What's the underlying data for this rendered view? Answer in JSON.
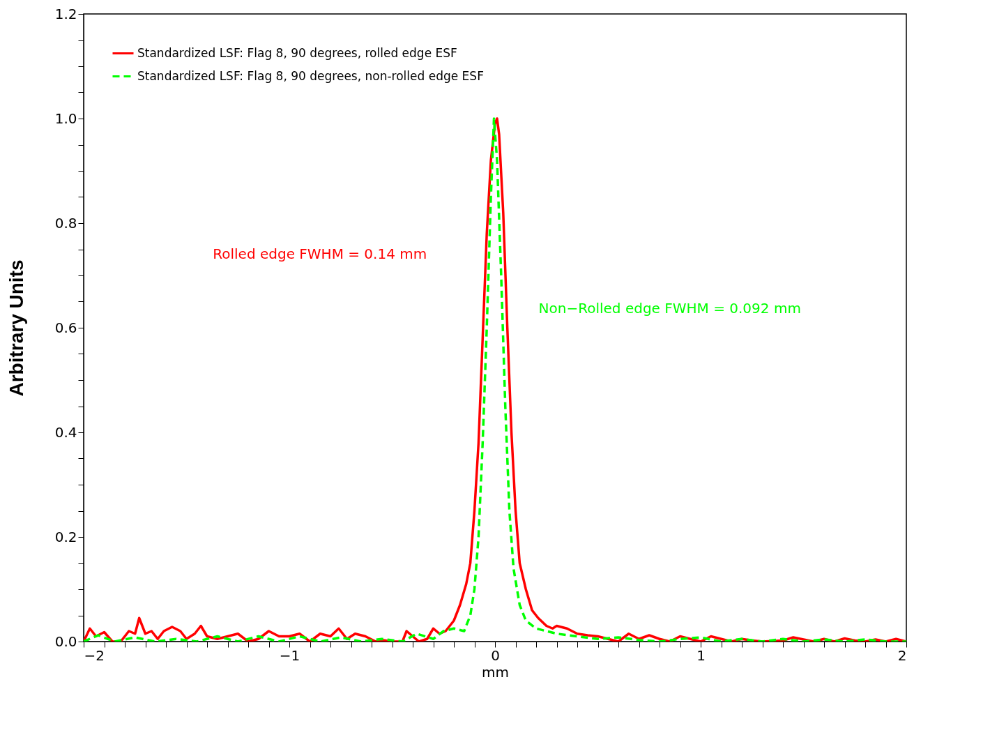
{
  "chart_data": {
    "type": "line",
    "xlabel": "mm",
    "ylabel": "Arbitrary Units",
    "xlim": [
      -2,
      2
    ],
    "ylim": [
      0,
      1.2
    ],
    "xticks": [
      {
        "value": -2,
        "label": "−2"
      },
      {
        "value": -1.9,
        "label": null
      },
      {
        "value": -1.8,
        "label": null
      },
      {
        "value": -1.7,
        "label": null
      },
      {
        "value": -1.6,
        "label": null
      },
      {
        "value": -1.5,
        "label": null
      },
      {
        "value": -1.4,
        "label": null
      },
      {
        "value": -1.3,
        "label": null
      },
      {
        "value": -1.2,
        "label": null
      },
      {
        "value": -1.1,
        "label": null
      },
      {
        "value": -1,
        "label": "−1"
      },
      {
        "value": -0.9,
        "label": null
      },
      {
        "value": -0.8,
        "label": null
      },
      {
        "value": -0.7,
        "label": null
      },
      {
        "value": -0.6,
        "label": null
      },
      {
        "value": -0.5,
        "label": null
      },
      {
        "value": -0.4,
        "label": null
      },
      {
        "value": -0.3,
        "label": null
      },
      {
        "value": -0.2,
        "label": null
      },
      {
        "value": -0.1,
        "label": null
      },
      0,
      {
        "value": 0.1,
        "label": null
      },
      {
        "value": 0.2,
        "label": null
      },
      {
        "value": 0.3,
        "label": null
      },
      {
        "value": 0.4,
        "label": null
      },
      {
        "value": 0.5,
        "label": null
      },
      {
        "value": 0.6,
        "label": null
      },
      {
        "value": 0.7,
        "label": null
      },
      {
        "value": 0.8,
        "label": null
      },
      {
        "value": 0.9,
        "label": null
      },
      1,
      {
        "value": 1.1,
        "label": null
      },
      {
        "value": 1.2,
        "label": null
      },
      {
        "value": 1.3,
        "label": null
      },
      {
        "value": 1.4,
        "label": null
      },
      {
        "value": 1.5,
        "label": null
      },
      {
        "value": 1.6,
        "label": null
      },
      {
        "value": 1.7,
        "label": null
      },
      {
        "value": 1.8,
        "label": null
      },
      {
        "value": 1.9,
        "label": null
      },
      2
    ],
    "yticks": [
      {
        "value": 0,
        "label": "0.0"
      },
      {
        "value": 0.05,
        "label": null
      },
      {
        "value": 0.1,
        "label": null
      },
      {
        "value": 0.15,
        "label": null
      },
      0.2,
      {
        "value": 0.25,
        "label": null
      },
      {
        "value": 0.3,
        "label": null
      },
      {
        "value": 0.35,
        "label": null
      },
      0.4,
      {
        "value": 0.45,
        "label": null
      },
      {
        "value": 0.5,
        "label": null
      },
      {
        "value": 0.55,
        "label": null
      },
      0.6,
      {
        "value": 0.65,
        "label": null
      },
      {
        "value": 0.7,
        "label": null
      },
      {
        "value": 0.75,
        "label": null
      },
      0.8,
      {
        "value": 0.85,
        "label": null
      },
      {
        "value": 0.9,
        "label": null
      },
      {
        "value": 0.95,
        "label": null
      },
      {
        "value": 1,
        "label": "1.0"
      },
      {
        "value": 1.05,
        "label": null
      },
      {
        "value": 1.1,
        "label": null
      },
      {
        "value": 1.15,
        "label": null
      },
      1.2
    ],
    "grid": false,
    "legend": "top left",
    "marker": "none",
    "annotations": [
      "Rolled edge FWHM = 0.14 mm",
      "Non−Rolled edge FWHM = 0.092 mm"
    ],
    "series": [
      {
        "name": "Standardized LSF: Flag 8, 90 degrees, rolled edge ESF",
        "color": "#ff0000",
        "line_style": "solid",
        "x": [
          -2.0,
          -1.97,
          -1.94,
          -1.9,
          -1.86,
          -1.82,
          -1.78,
          -1.75,
          -1.73,
          -1.7,
          -1.67,
          -1.64,
          -1.61,
          -1.57,
          -1.53,
          -1.5,
          -1.46,
          -1.43,
          -1.4,
          -1.35,
          -1.3,
          -1.25,
          -1.2,
          -1.15,
          -1.1,
          -1.05,
          -1.0,
          -0.95,
          -0.9,
          -0.85,
          -0.8,
          -0.76,
          -0.72,
          -0.68,
          -0.63,
          -0.58,
          -0.55,
          -0.5,
          -0.45,
          -0.43,
          -0.4,
          -0.37,
          -0.33,
          -0.3,
          -0.27,
          -0.24,
          -0.2,
          -0.17,
          -0.14,
          -0.12,
          -0.1,
          -0.08,
          -0.06,
          -0.04,
          -0.02,
          0.0,
          0.01,
          0.02,
          0.04,
          0.06,
          0.08,
          0.1,
          0.12,
          0.15,
          0.18,
          0.21,
          0.25,
          0.28,
          0.3,
          0.35,
          0.4,
          0.45,
          0.5,
          0.55,
          0.6,
          0.65,
          0.7,
          0.75,
          0.8,
          0.85,
          0.9,
          0.95,
          1.0,
          1.05,
          1.1,
          1.15,
          1.2,
          1.25,
          1.3,
          1.4,
          1.45,
          1.55,
          1.6,
          1.65,
          1.7,
          1.75,
          1.8,
          1.85,
          1.9,
          1.95,
          2.0
        ],
        "values": [
          0.0,
          0.025,
          0.01,
          0.018,
          0.0,
          0.0,
          0.02,
          0.015,
          0.045,
          0.015,
          0.02,
          0.005,
          0.02,
          0.028,
          0.02,
          0.005,
          0.015,
          0.03,
          0.01,
          0.005,
          0.01,
          0.015,
          0.0,
          0.005,
          0.02,
          0.01,
          0.01,
          0.015,
          0.0,
          0.015,
          0.01,
          0.025,
          0.005,
          0.015,
          0.01,
          0.0,
          0.003,
          0.0,
          0.0,
          0.02,
          0.01,
          0.0,
          0.005,
          0.025,
          0.015,
          0.02,
          0.04,
          0.07,
          0.11,
          0.15,
          0.25,
          0.38,
          0.58,
          0.78,
          0.92,
          0.99,
          1.0,
          0.97,
          0.82,
          0.6,
          0.4,
          0.25,
          0.15,
          0.1,
          0.06,
          0.045,
          0.03,
          0.025,
          0.03,
          0.025,
          0.015,
          0.012,
          0.01,
          0.005,
          0.0,
          0.015,
          0.005,
          0.012,
          0.005,
          0.0,
          0.01,
          0.005,
          0.0,
          0.01,
          0.005,
          0.0,
          0.005,
          0.002,
          0.0,
          0.002,
          0.008,
          0.0,
          0.005,
          0.0,
          0.006,
          0.002,
          0.0,
          0.004,
          0.0,
          0.005,
          0.0
        ]
      },
      {
        "name": "Standardized LSF: Flag 8, 90 degrees, non-rolled edge ESF",
        "color": "#00ff00",
        "line_style": "dashed",
        "x": [
          -2.0,
          -1.93,
          -1.85,
          -1.75,
          -1.65,
          -1.55,
          -1.45,
          -1.35,
          -1.25,
          -1.15,
          -1.05,
          -0.95,
          -0.85,
          -0.75,
          -0.65,
          -0.55,
          -0.45,
          -0.38,
          -0.3,
          -0.25,
          -0.2,
          -0.15,
          -0.12,
          -0.1,
          -0.08,
          -0.06,
          -0.04,
          -0.02,
          -0.005,
          0.01,
          0.03,
          0.05,
          0.07,
          0.09,
          0.12,
          0.15,
          0.2,
          0.3,
          0.4,
          0.5,
          0.6,
          0.7,
          0.8,
          0.9,
          1.0,
          1.1,
          1.2,
          1.3,
          1.4,
          1.5,
          1.6,
          1.7,
          1.8,
          1.9,
          2.0
        ],
        "values": [
          0.0,
          0.012,
          0.0,
          0.008,
          0.0,
          0.005,
          0.0,
          0.01,
          0.0,
          0.01,
          0.0,
          0.01,
          0.0,
          0.008,
          0.0,
          0.005,
          0.0,
          0.015,
          0.005,
          0.02,
          0.025,
          0.02,
          0.05,
          0.1,
          0.2,
          0.38,
          0.6,
          0.85,
          1.0,
          0.92,
          0.7,
          0.45,
          0.25,
          0.14,
          0.07,
          0.04,
          0.025,
          0.015,
          0.01,
          0.005,
          0.008,
          0.003,
          0.0,
          0.005,
          0.008,
          0.0,
          0.005,
          0.0,
          0.005,
          0.0,
          0.004,
          0.0,
          0.004,
          0.0,
          0.0
        ]
      }
    ]
  }
}
